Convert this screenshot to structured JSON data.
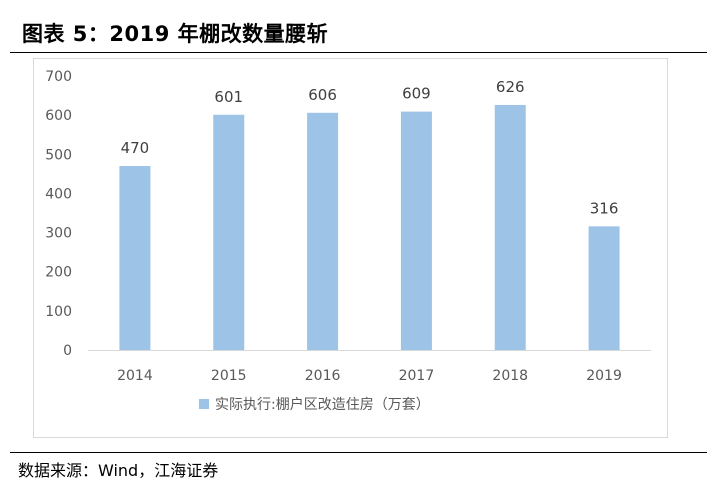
{
  "figure": {
    "title": "图表 5：2019 年棚改数量腰斩",
    "source": "数据来源：Wind，江海证券"
  },
  "colors": {
    "bar": "#9dc3e6",
    "axis_text": "#595959",
    "label_text": "#404040",
    "axis_line": "#d9d9d9"
  },
  "chart_data": {
    "type": "bar",
    "categories": [
      "2014",
      "2015",
      "2016",
      "2017",
      "2018",
      "2019"
    ],
    "series": [
      {
        "name": "实际执行:棚户区改造住房（万套）",
        "values": [
          470,
          601,
          606,
          609,
          626,
          316
        ]
      }
    ],
    "yticks": [
      0,
      100,
      200,
      300,
      400,
      500,
      600,
      700
    ],
    "ylim": [
      0,
      700
    ],
    "grid": false,
    "legend_position": "bottom",
    "data_labels": true
  }
}
